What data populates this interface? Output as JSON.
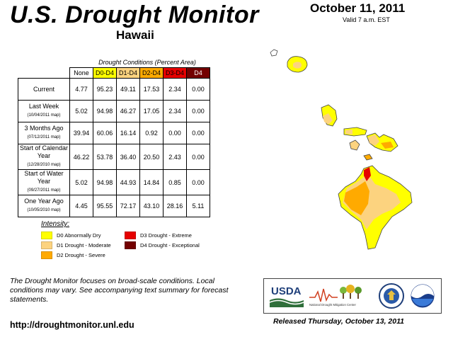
{
  "header": {
    "title": "U.S. Drought Monitor",
    "region": "Hawaii",
    "date": "October 11, 2011",
    "valid": "Valid 7 a.m. EST"
  },
  "table": {
    "caption": "Drought Conditions (Percent Area)",
    "columns": [
      "None",
      "D0-D4",
      "D1-D4",
      "D2-D4",
      "D3-D4",
      "D4"
    ],
    "column_colors": [
      "#ffffff",
      "#ffff00",
      "#fcd37f",
      "#ffaa00",
      "#e60000",
      "#730000"
    ],
    "rows": [
      {
        "label": "Current",
        "sub": "",
        "values": [
          "4.77",
          "95.23",
          "49.11",
          "17.53",
          "2.34",
          "0.00"
        ]
      },
      {
        "label": "Last Week",
        "sub": "(10/04/2011 map)",
        "values": [
          "5.02",
          "94.98",
          "46.27",
          "17.05",
          "2.34",
          "0.00"
        ]
      },
      {
        "label": "3 Months Ago",
        "sub": "(07/12/2011 map)",
        "values": [
          "39.94",
          "60.06",
          "16.14",
          "0.92",
          "0.00",
          "0.00"
        ]
      },
      {
        "label": "Start of Calendar Year",
        "sub": "(12/28/2010 map)",
        "values": [
          "46.22",
          "53.78",
          "36.40",
          "20.50",
          "2.43",
          "0.00"
        ]
      },
      {
        "label": "Start of Water Year",
        "sub": "(09/27/2011 map)",
        "values": [
          "5.02",
          "94.98",
          "44.93",
          "14.84",
          "0.85",
          "0.00"
        ]
      },
      {
        "label": "One Year Ago",
        "sub": "(10/05/2010 map)",
        "values": [
          "4.45",
          "95.55",
          "72.17",
          "43.10",
          "28.16",
          "5.11"
        ]
      }
    ]
  },
  "legend": {
    "title": "Intensity:",
    "items": [
      {
        "label": "D0 Abnormally Dry",
        "color": "#ffff00"
      },
      {
        "label": "D1 Drought - Moderate",
        "color": "#fcd37f"
      },
      {
        "label": "D2 Drought - Severe",
        "color": "#ffaa00"
      },
      {
        "label": "D3 Drought - Extreme",
        "color": "#e60000"
      },
      {
        "label": "D4 Drought - Exceptional",
        "color": "#730000"
      }
    ]
  },
  "footer": {
    "note": "The Drought Monitor focuses on broad-scale conditions. Local conditions may vary. See accompanying text summary for forecast statements.",
    "url": "http://droughtmonitor.unl.edu",
    "released": "Released Thursday, October 13, 2011"
  },
  "logos": {
    "usda": "USDA",
    "ndmc": "National Drought Mitigation Center"
  }
}
